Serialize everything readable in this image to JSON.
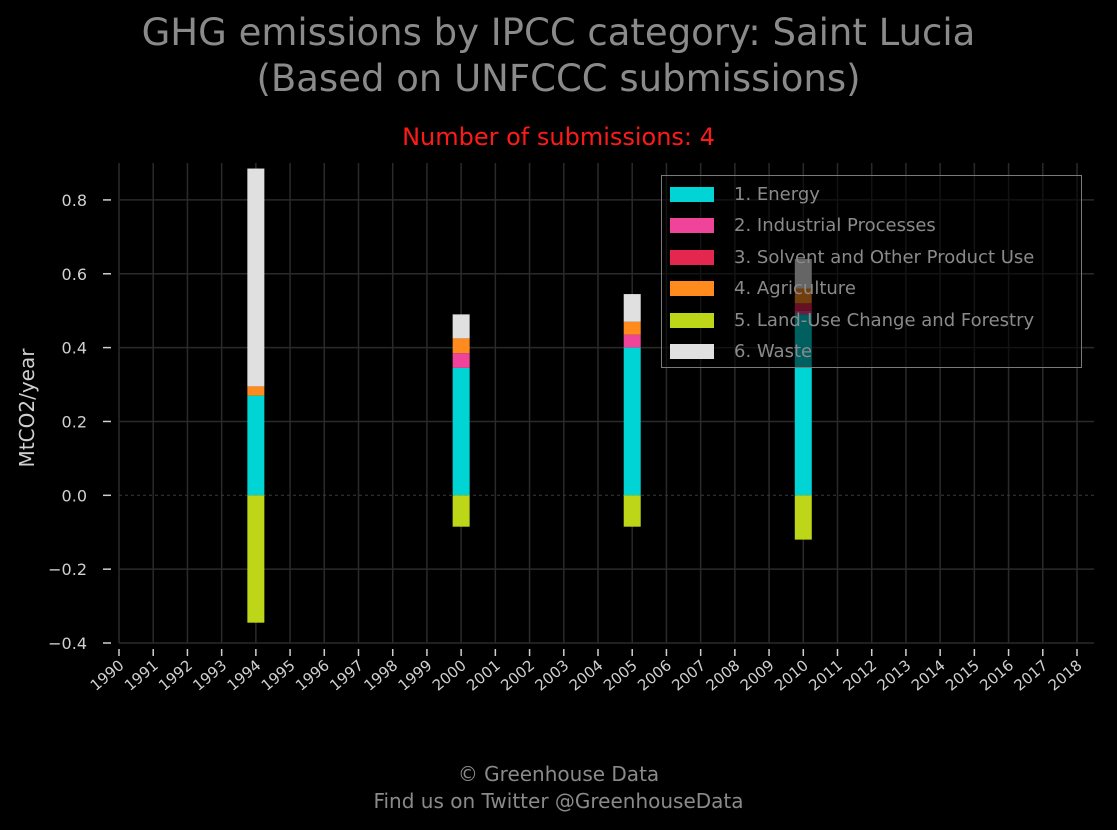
{
  "title_line1": "GHG emissions by IPCC category: Saint Lucia",
  "title_line2": "(Based on UNFCCC submissions)",
  "subtitle": "Number of submissions: 4",
  "footer_line1": "© Greenhouse Data",
  "footer_line2": "Find us on Twitter @GreenhouseData",
  "chart_data": {
    "type": "bar",
    "stacked": true,
    "ylabel": "MtCO2/year",
    "xlabel": "",
    "ylim": [
      -0.4,
      0.9
    ],
    "yticks": [
      "0.8",
      "0.6",
      "0.4",
      "0.2",
      "0.0",
      "−0.2",
      "−0.4"
    ],
    "ytick_values": [
      0.8,
      0.6,
      0.4,
      0.2,
      0.0,
      -0.2,
      -0.4
    ],
    "x_ticks": [
      "1990",
      "1991",
      "1992",
      "1993",
      "1994",
      "1995",
      "1996",
      "1997",
      "1998",
      "1999",
      "2000",
      "2001",
      "2002",
      "2003",
      "2004",
      "2005",
      "2006",
      "2007",
      "2008",
      "2009",
      "2010",
      "2011",
      "2012",
      "2013",
      "2014",
      "2015",
      "2016",
      "2017",
      "2018"
    ],
    "grid": true,
    "legend_position": "top-right",
    "categories": [
      "1994",
      "2000",
      "2005",
      "2010"
    ],
    "series": [
      {
        "name": "1. Energy",
        "color": "#00d4d4",
        "values": [
          0.27,
          0.345,
          0.4,
          0.49
        ]
      },
      {
        "name": "2. Industrial Processes",
        "color": "#f0449a",
        "values": [
          0.0,
          0.04,
          0.035,
          0.01
        ]
      },
      {
        "name": "3. Solvent and Other Product Use",
        "color": "#e3274f",
        "values": [
          0.0,
          0.0,
          0.0,
          0.02
        ]
      },
      {
        "name": "4. Agriculture",
        "color": "#ff8a1e",
        "values": [
          0.025,
          0.04,
          0.035,
          0.04
        ]
      },
      {
        "name": "5. Land-Use Change and Forestry",
        "color": "#bdd618",
        "values": [
          -0.345,
          -0.085,
          -0.085,
          -0.12
        ]
      },
      {
        "name": "6. Waste",
        "color": "#e0e0e0",
        "values": [
          0.59,
          0.065,
          0.075,
          0.08
        ]
      }
    ]
  }
}
